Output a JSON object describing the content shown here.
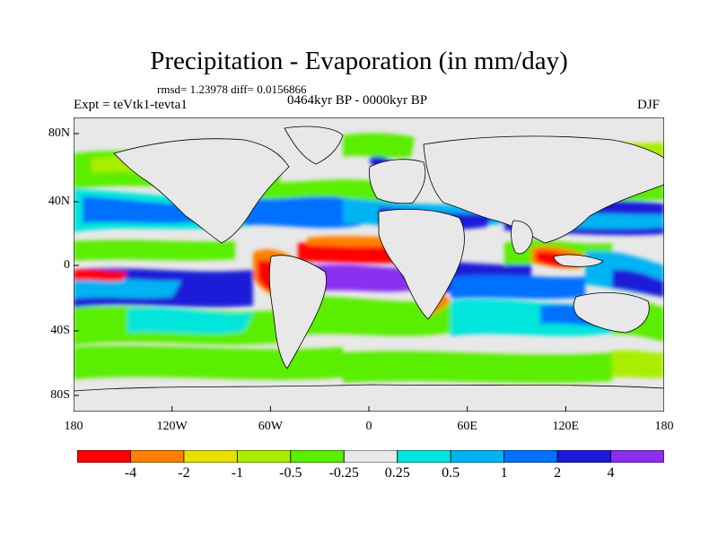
{
  "title": "Precipitation - Evaporation (in mm/day)",
  "stats": "rmsd= 1.23978 diff= 0.0156866",
  "left_label": "Expt = teVtk1-tevta1",
  "center_label": "0464kyr BP - 0000kyr BP",
  "right_label": "DJF",
  "lat_ticks": [
    "80N",
    "40N",
    "0",
    "40S",
    "80S"
  ],
  "lon_ticks": [
    "180",
    "120W",
    "60W",
    "0",
    "60E",
    "120E",
    "180"
  ],
  "colorbar": {
    "colors": [
      "#ff0000",
      "#ff7f00",
      "#e9e000",
      "#a9ee00",
      "#5aee00",
      "#e8e8e8",
      "#00e5dc",
      "#00b4f4",
      "#0070ff",
      "#1a1ad8",
      "#8a2ef0"
    ],
    "labels": [
      "-4",
      "-2",
      "-1",
      "-0.5",
      "-0.25",
      "0.25",
      "0.5",
      "1",
      "2",
      "4"
    ]
  },
  "colors": {
    "ocean_neutral": "#e8e8e8",
    "coastline": "#000000"
  }
}
